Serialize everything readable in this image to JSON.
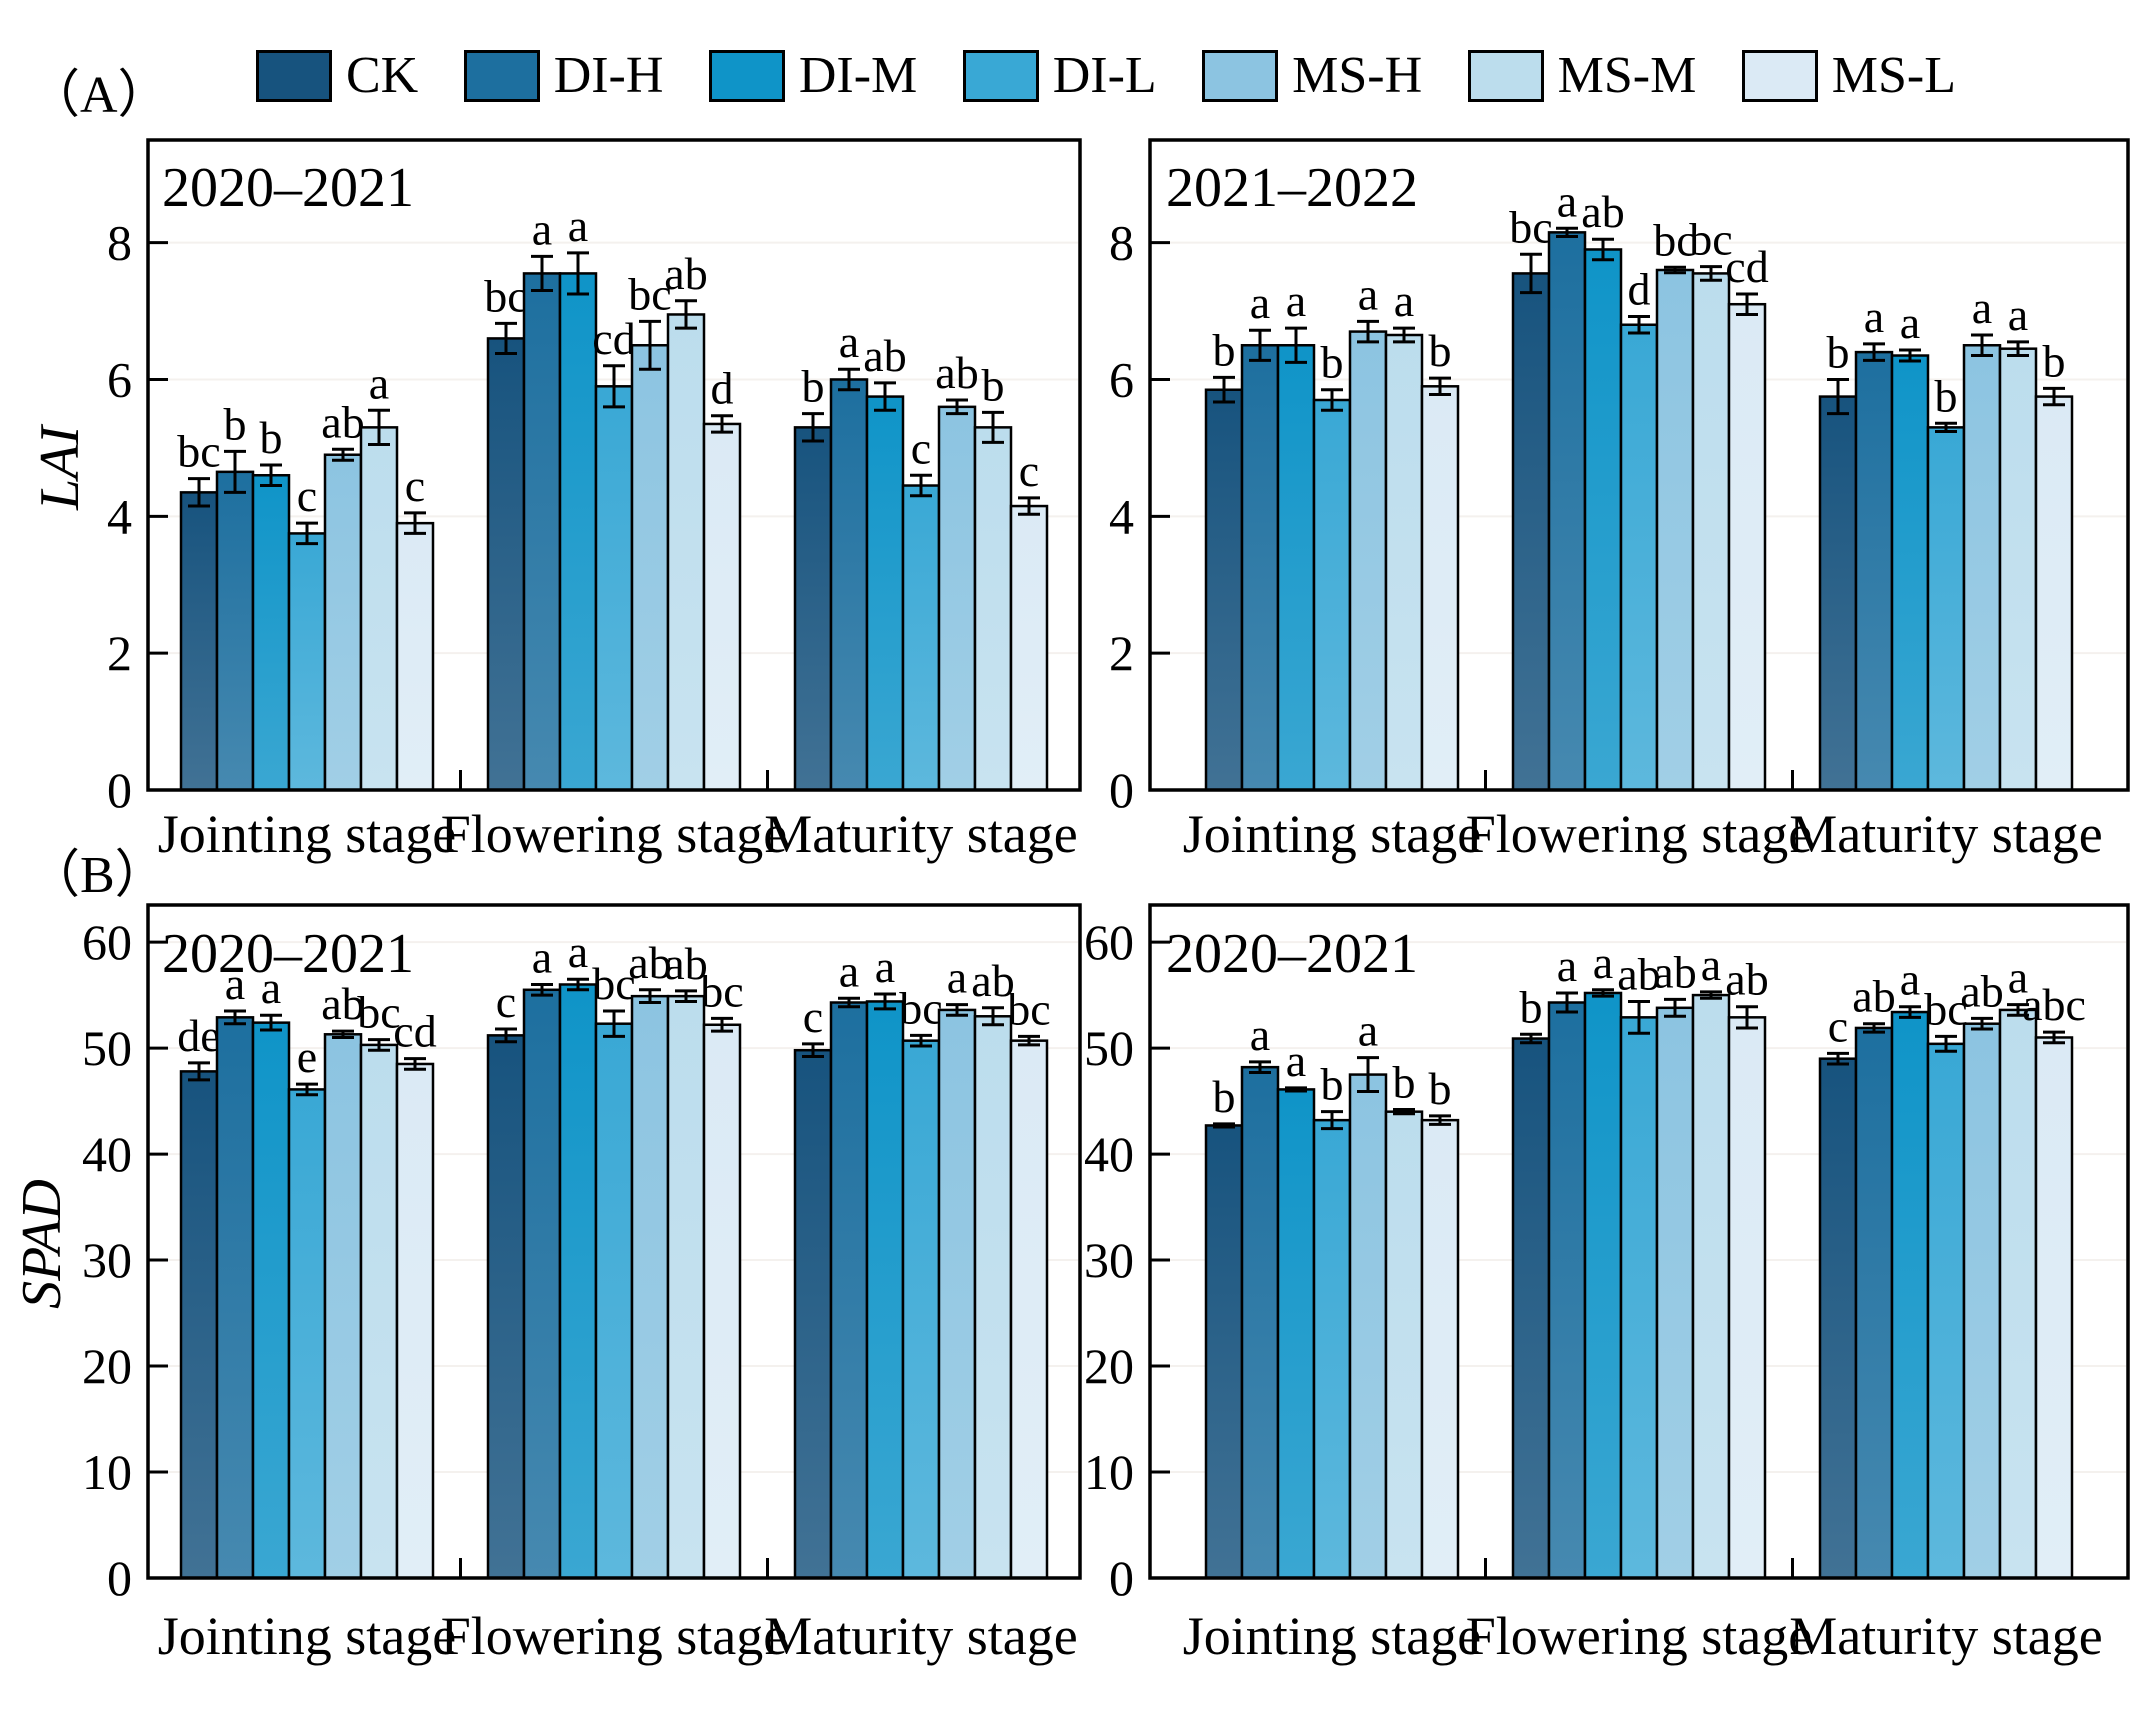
{
  "figure": {
    "row_labels": [
      "（A）",
      "（B）"
    ],
    "background": "#ffffff",
    "axis_color": "#000000",
    "gridline_color": "#f4f1ee"
  },
  "legend": {
    "items": [
      {
        "label": "CK",
        "color": "#17537e"
      },
      {
        "label": "DI-H",
        "color": "#1d6f9f"
      },
      {
        "label": "DI-M",
        "color": "#0f94c8"
      },
      {
        "label": "DI-L",
        "color": "#39a8d5"
      },
      {
        "label": "MS-H",
        "color": "#8cc4e1"
      },
      {
        "label": "MS-M",
        "color": "#bcdded"
      },
      {
        "label": "MS-L",
        "color": "#dbeaf5"
      }
    ]
  },
  "chart_data": [
    {
      "id": "lai-left",
      "type": "bar",
      "title": "2020–2021",
      "ylabel": "LAI",
      "ylim": [
        0,
        9.5
      ],
      "yticks": [
        0,
        2,
        4,
        6,
        8
      ],
      "grid": "faint-horizontal",
      "legend_position": "top",
      "categories": [
        "Jointing stage",
        "Flowering stage",
        "Maturity stage"
      ],
      "series": [
        {
          "name": "CK",
          "values": [
            4.35,
            6.6,
            5.3
          ],
          "err": [
            0.2,
            0.22,
            0.2
          ],
          "letters": [
            "bc",
            "bc",
            "b"
          ]
        },
        {
          "name": "DI-H",
          "values": [
            4.65,
            7.55,
            6.0
          ],
          "err": [
            0.3,
            0.25,
            0.15
          ],
          "letters": [
            "b",
            "a",
            "a"
          ]
        },
        {
          "name": "DI-M",
          "values": [
            4.6,
            7.55,
            5.75
          ],
          "err": [
            0.15,
            0.3,
            0.2
          ],
          "letters": [
            "b",
            "a",
            "ab"
          ]
        },
        {
          "name": "DI-L",
          "values": [
            3.75,
            5.9,
            4.45
          ],
          "err": [
            0.15,
            0.3,
            0.15
          ],
          "letters": [
            "c",
            "cd",
            "c"
          ]
        },
        {
          "name": "MS-H",
          "values": [
            4.9,
            6.5,
            5.6
          ],
          "err": [
            0.08,
            0.35,
            0.1
          ],
          "letters": [
            "ab",
            "bc",
            "ab"
          ]
        },
        {
          "name": "MS-M",
          "values": [
            5.3,
            6.95,
            5.3
          ],
          "err": [
            0.25,
            0.2,
            0.22
          ],
          "letters": [
            "a",
            "ab",
            "b"
          ]
        },
        {
          "name": "MS-L",
          "values": [
            3.9,
            5.35,
            4.15
          ],
          "err": [
            0.15,
            0.12,
            0.12
          ],
          "letters": [
            "c",
            "d",
            "c"
          ]
        }
      ]
    },
    {
      "id": "lai-right",
      "type": "bar",
      "title": "2021–2022",
      "ylabel": "",
      "ylim": [
        0,
        9.5
      ],
      "yticks": [
        0,
        2,
        4,
        6,
        8
      ],
      "grid": "faint-horizontal",
      "categories": [
        "Jointing stage",
        "Flowering stage",
        "Maturity stage"
      ],
      "series": [
        {
          "name": "CK",
          "values": [
            5.85,
            7.55,
            5.75
          ],
          "err": [
            0.18,
            0.28,
            0.25
          ],
          "letters": [
            "b",
            "bc",
            "b"
          ]
        },
        {
          "name": "DI-H",
          "values": [
            6.5,
            8.15,
            6.4
          ],
          "err": [
            0.22,
            0.06,
            0.12
          ],
          "letters": [
            "a",
            "a",
            "a"
          ]
        },
        {
          "name": "DI-M",
          "values": [
            6.5,
            7.9,
            6.35
          ],
          "err": [
            0.25,
            0.15,
            0.08
          ],
          "letters": [
            "a",
            "ab",
            "a"
          ]
        },
        {
          "name": "DI-L",
          "values": [
            5.7,
            6.8,
            5.3
          ],
          "err": [
            0.15,
            0.12,
            0.06
          ],
          "letters": [
            "b",
            "d",
            "b"
          ]
        },
        {
          "name": "MS-H",
          "values": [
            6.7,
            7.6,
            6.5
          ],
          "err": [
            0.15,
            0.04,
            0.15
          ],
          "letters": [
            "a",
            "bc",
            "a"
          ]
        },
        {
          "name": "MS-M",
          "values": [
            6.65,
            7.55,
            6.45
          ],
          "err": [
            0.1,
            0.1,
            0.1
          ],
          "letters": [
            "a",
            "bc",
            "a"
          ]
        },
        {
          "name": "MS-L",
          "values": [
            5.9,
            7.1,
            5.75
          ],
          "err": [
            0.12,
            0.15,
            0.12
          ],
          "letters": [
            "b",
            "cd",
            "b"
          ]
        }
      ]
    },
    {
      "id": "spad-left",
      "type": "bar",
      "title": "2020–2021",
      "ylabel": "SPAD",
      "ylim": [
        0,
        63.5
      ],
      "yticks": [
        0,
        10,
        20,
        30,
        40,
        50,
        60
      ],
      "grid": "faint-horizontal",
      "categories": [
        "Jointing stage",
        "Flowering stage",
        "Maturity stage"
      ],
      "series": [
        {
          "name": "CK",
          "values": [
            47.8,
            51.2,
            49.8
          ],
          "err": [
            0.8,
            0.6,
            0.6
          ],
          "letters": [
            "de",
            "c",
            "c"
          ]
        },
        {
          "name": "DI-H",
          "values": [
            52.9,
            55.5,
            54.3
          ],
          "err": [
            0.6,
            0.5,
            0.4
          ],
          "letters": [
            "a",
            "a",
            "a"
          ]
        },
        {
          "name": "DI-M",
          "values": [
            52.4,
            56.0,
            54.4
          ],
          "err": [
            0.7,
            0.5,
            0.7
          ],
          "letters": [
            "a",
            "a",
            "a"
          ]
        },
        {
          "name": "DI-L",
          "values": [
            46.1,
            52.3,
            50.7
          ],
          "err": [
            0.5,
            1.2,
            0.5
          ],
          "letters": [
            "e",
            "bc",
            "bc"
          ]
        },
        {
          "name": "MS-H",
          "values": [
            51.3,
            54.9,
            53.6
          ],
          "err": [
            0.3,
            0.6,
            0.5
          ],
          "letters": [
            "ab",
            "ab",
            "a"
          ]
        },
        {
          "name": "MS-M",
          "values": [
            50.3,
            54.9,
            53.0
          ],
          "err": [
            0.5,
            0.5,
            0.8
          ],
          "letters": [
            "bc",
            "ab",
            "ab"
          ]
        },
        {
          "name": "MS-L",
          "values": [
            48.5,
            52.2,
            50.7
          ],
          "err": [
            0.5,
            0.6,
            0.4
          ],
          "letters": [
            "cd",
            "bc",
            "bc"
          ]
        }
      ]
    },
    {
      "id": "spad-right",
      "type": "bar",
      "title": "2020–2021",
      "ylabel": "",
      "ylim": [
        0,
        63.5
      ],
      "yticks": [
        0,
        10,
        20,
        30,
        40,
        50,
        60
      ],
      "grid": "faint-horizontal",
      "categories": [
        "Jointing stage",
        "Flowering stage",
        "Maturity stage"
      ],
      "series": [
        {
          "name": "CK",
          "values": [
            42.7,
            50.9,
            49.0
          ],
          "err": [
            0.15,
            0.4,
            0.5
          ],
          "letters": [
            "b",
            "b",
            "c"
          ]
        },
        {
          "name": "DI-H",
          "values": [
            48.2,
            54.3,
            51.9
          ],
          "err": [
            0.5,
            0.9,
            0.4
          ],
          "letters": [
            "a",
            "a",
            "ab"
          ]
        },
        {
          "name": "DI-M",
          "values": [
            46.1,
            55.2,
            53.4
          ],
          "err": [
            0.15,
            0.3,
            0.5
          ],
          "letters": [
            "a",
            "a",
            "a"
          ]
        },
        {
          "name": "DI-L",
          "values": [
            43.2,
            52.9,
            50.4
          ],
          "err": [
            0.8,
            1.5,
            0.7
          ],
          "letters": [
            "b",
            "ab",
            "bc"
          ]
        },
        {
          "name": "MS-H",
          "values": [
            47.5,
            53.8,
            52.3
          ],
          "err": [
            1.6,
            0.8,
            0.5
          ],
          "letters": [
            "a",
            "ab",
            "ab"
          ]
        },
        {
          "name": "MS-M",
          "values": [
            44.0,
            55.0,
            53.6
          ],
          "err": [
            0.2,
            0.3,
            0.5
          ],
          "letters": [
            "b",
            "a",
            "a"
          ]
        },
        {
          "name": "MS-L",
          "values": [
            43.2,
            52.9,
            51.0
          ],
          "err": [
            0.4,
            1.0,
            0.5
          ],
          "letters": [
            "b",
            "ab",
            "abc"
          ]
        }
      ]
    }
  ]
}
